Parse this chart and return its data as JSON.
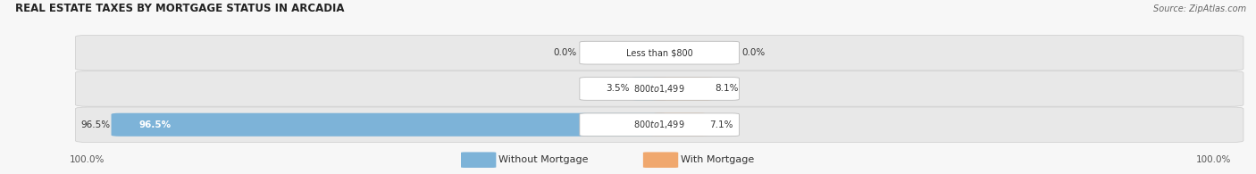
{
  "title": "REAL ESTATE TAXES BY MORTGAGE STATUS IN ARCADIA",
  "source": "Source: ZipAtlas.com",
  "rows": [
    {
      "label": "Less than $800",
      "without_mortgage": 0.0,
      "with_mortgage": 0.0,
      "without_pct": "0.0%",
      "with_pct": "0.0%"
    },
    {
      "label": "$800 to $1,499",
      "without_mortgage": 3.5,
      "with_mortgage": 8.1,
      "without_pct": "3.5%",
      "with_pct": "8.1%"
    },
    {
      "label": "$800 to $1,499",
      "without_mortgage": 96.5,
      "with_mortgage": 7.1,
      "without_pct": "96.5%",
      "with_pct": "7.1%"
    }
  ],
  "color_without": "#7db3d8",
  "color_with": "#f0a86e",
  "axis_label_left": "100.0%",
  "axis_label_right": "100.0%",
  "legend_without": "Without Mortgage",
  "legend_with": "With Mortgage",
  "fig_bg": "#f7f7f7",
  "row_bg": "#e8e8e8",
  "title_color": "#222222",
  "source_color": "#666666"
}
